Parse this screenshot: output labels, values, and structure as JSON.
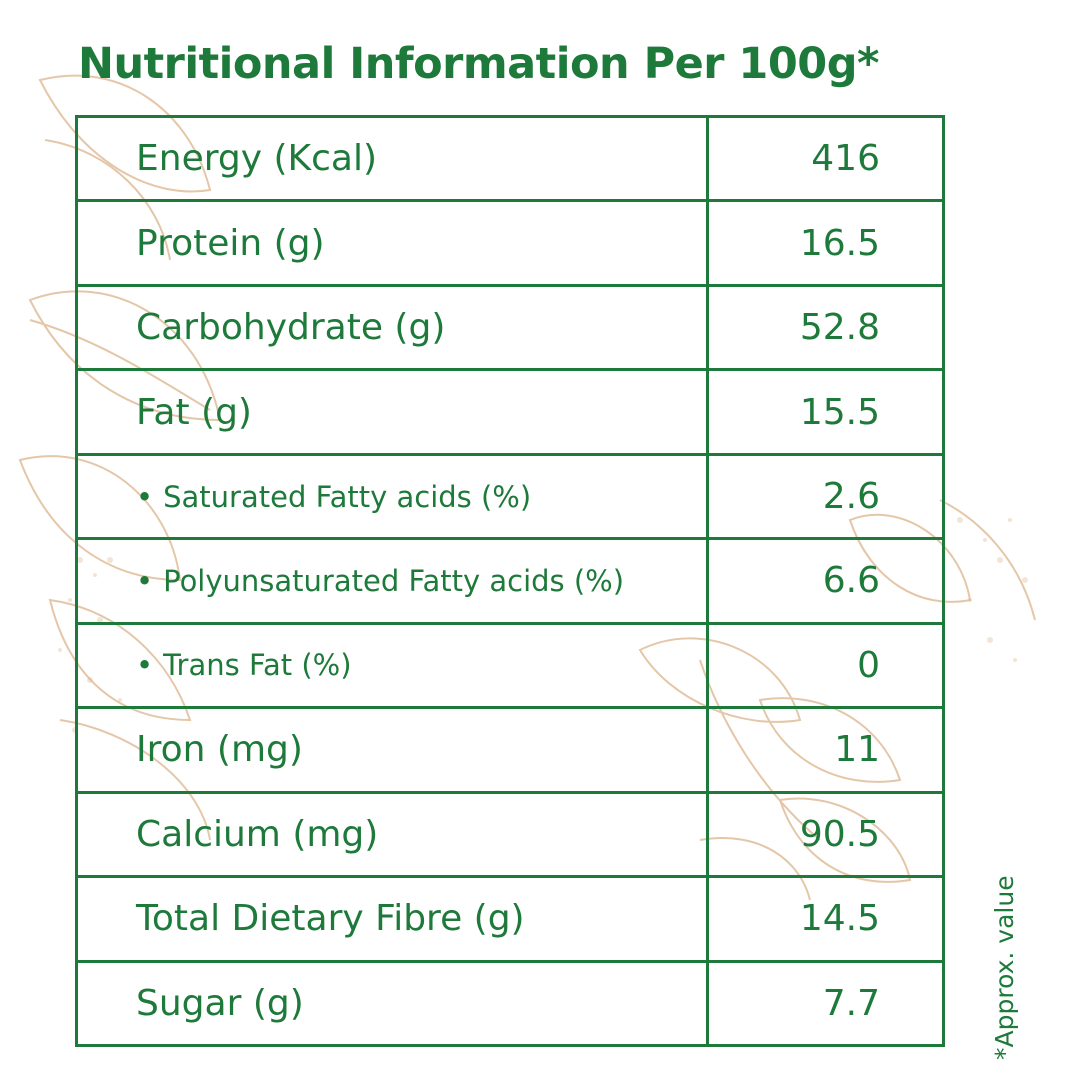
{
  "title": "Nutritional Information Per 100g*",
  "rows": [
    {
      "label": "Energy (Kcal)",
      "value": "416",
      "sub": false
    },
    {
      "label": "Protein (g)",
      "value": "16.5",
      "sub": false
    },
    {
      "label": "Carbohydrate (g)",
      "value": "52.8",
      "sub": false
    },
    {
      "label": "Fat (g)",
      "value": "15.5",
      "sub": false
    },
    {
      "label": "Saturated Fatty acids (%)",
      "value": "2.6",
      "sub": true
    },
    {
      "label": "Polyunsaturated Fatty acids (%)",
      "value": "6.6",
      "sub": true
    },
    {
      "label": "Trans Fat (%)",
      "value": "0",
      "sub": true
    },
    {
      "label": "Iron (mg)",
      "value": "11",
      "sub": false
    },
    {
      "label": "Calcium (mg)",
      "value": "90.5",
      "sub": false
    },
    {
      "label": "Total Dietary Fibre (g)",
      "value": "14.5",
      "sub": false
    },
    {
      "label": "Sugar (g)",
      "value": "7.7",
      "sub": false
    }
  ],
  "bullet_glyph": "•",
  "footnote": "*Approx. value",
  "colors": {
    "text": "#1e7a3a",
    "border": "#1e7a3a",
    "illustration": "#dcb48c"
  }
}
